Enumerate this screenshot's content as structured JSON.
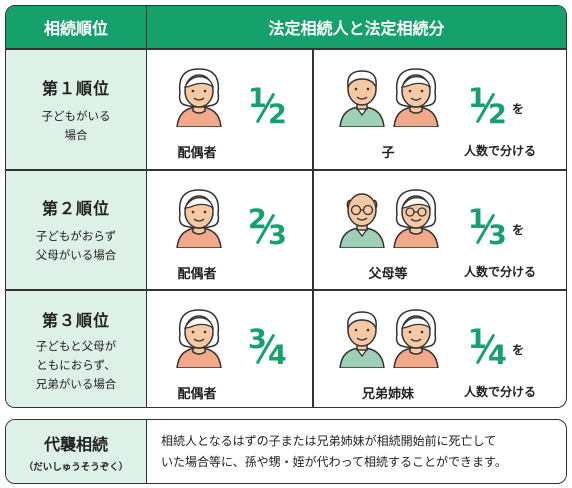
{
  "header": {
    "rank_label": "相続順位",
    "heirs_label": "法定相続人と法定相続分"
  },
  "ranks": [
    {
      "title": "第１順位",
      "desc1": "子どもがいる",
      "desc2": "場合",
      "desc3": "",
      "spouse_label": "配偶者",
      "spouse_num": "1",
      "spouse_den": "2",
      "heir_label": "子",
      "heir_num": "1",
      "heir_den": "2"
    },
    {
      "title": "第２順位",
      "desc1": "子どもがおらず",
      "desc2": "父母がいる場合",
      "desc3": "",
      "spouse_label": "配偶者",
      "spouse_num": "2",
      "spouse_den": "3",
      "heir_label": "父母等",
      "heir_num": "1",
      "heir_den": "3"
    },
    {
      "title": "第３順位",
      "desc1": "子どもと父母が",
      "desc2": "ともにおらず、",
      "desc3": "兄弟がいる場合",
      "spouse_label": "配偶者",
      "spouse_num": "3",
      "spouse_den": "4",
      "heir_label": "兄弟姉妹",
      "heir_num": "1",
      "heir_den": "4"
    }
  ],
  "split_particle": "を",
  "split_text": "人数で分ける",
  "footer": {
    "title": "代襲相続",
    "reading": "（だいしゅうそうぞく）",
    "line1": "相続人となるはずの子または兄弟姉妹が相続開始前に死亡して",
    "line2": "いた場合等に、孫や甥・姪が代わって相続することができます。"
  },
  "colors": {
    "accent": "#16a06c",
    "rank_bg": "#def1e8",
    "skin": "#f6c9a4",
    "shirt": "#f2a98a",
    "shirt_green": "#9ed0b8"
  }
}
